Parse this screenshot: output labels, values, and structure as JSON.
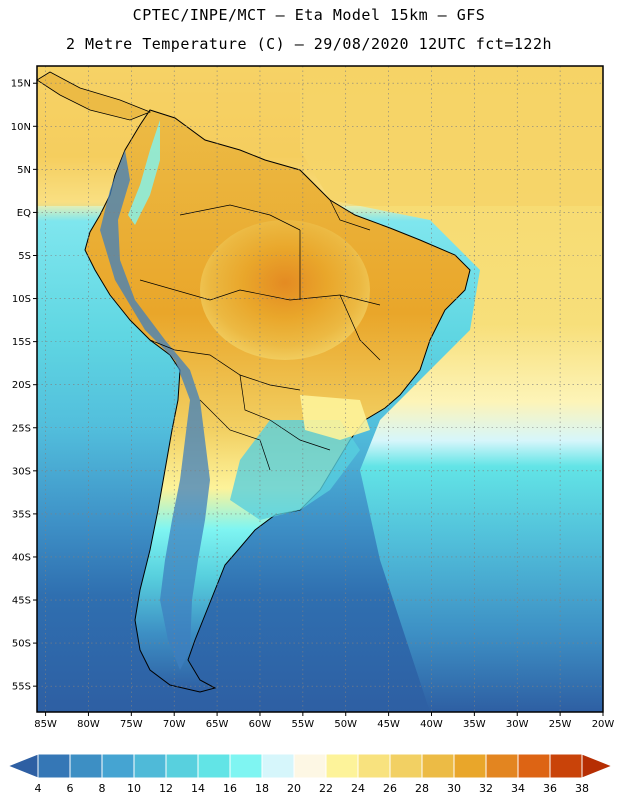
{
  "header": {
    "line1": "CPTEC/INPE/MCT –  Eta Model 15km – GFS",
    "line2": "2 Metre Temperature (C) – 29/08/2020 12UTC fct=122h"
  },
  "map": {
    "lon_range": [
      -86,
      -20
    ],
    "lat_range": [
      -58,
      17
    ],
    "lat_ticks": [
      {
        "value": 15,
        "label": "15N"
      },
      {
        "value": 10,
        "label": "10N"
      },
      {
        "value": 5,
        "label": "5N"
      },
      {
        "value": 0,
        "label": "EQ"
      },
      {
        "value": -5,
        "label": "5S"
      },
      {
        "value": -10,
        "label": "10S"
      },
      {
        "value": -15,
        "label": "15S"
      },
      {
        "value": -20,
        "label": "20S"
      },
      {
        "value": -25,
        "label": "25S"
      },
      {
        "value": -30,
        "label": "30S"
      },
      {
        "value": -35,
        "label": "35S"
      },
      {
        "value": -40,
        "label": "40S"
      },
      {
        "value": -45,
        "label": "45S"
      },
      {
        "value": -50,
        "label": "50S"
      },
      {
        "value": -55,
        "label": "55S"
      }
    ],
    "lon_ticks": [
      {
        "value": -85,
        "label": "85W"
      },
      {
        "value": -80,
        "label": "80W"
      },
      {
        "value": -75,
        "label": "75W"
      },
      {
        "value": -70,
        "label": "70W"
      },
      {
        "value": -65,
        "label": "65W"
      },
      {
        "value": -60,
        "label": "60W"
      },
      {
        "value": -55,
        "label": "55W"
      },
      {
        "value": -50,
        "label": "50W"
      },
      {
        "value": -45,
        "label": "45W"
      },
      {
        "value": -40,
        "label": "40W"
      },
      {
        "value": -35,
        "label": "35W"
      },
      {
        "value": -30,
        "label": "30W"
      },
      {
        "value": -25,
        "label": "25W"
      },
      {
        "value": -20,
        "label": "20W"
      }
    ],
    "grid": true
  },
  "colorbar": {
    "labels": [
      "4",
      "6",
      "8",
      "10",
      "12",
      "14",
      "16",
      "18",
      "20",
      "22",
      "24",
      "26",
      "28",
      "30",
      "32",
      "34",
      "36",
      "38"
    ],
    "colors": [
      "#2e5fa3",
      "#3577b6",
      "#3d8fc4",
      "#45a4d2",
      "#4fbad8",
      "#58d0de",
      "#62e4e6",
      "#7ff5f2",
      "#d6f6fb",
      "#fdf7e4",
      "#fdf39a",
      "#f8e27e",
      "#f2d063",
      "#ecbb45",
      "#e9a62a",
      "#e38520",
      "#dd6414",
      "#c94309",
      "#b62e03"
    ]
  }
}
